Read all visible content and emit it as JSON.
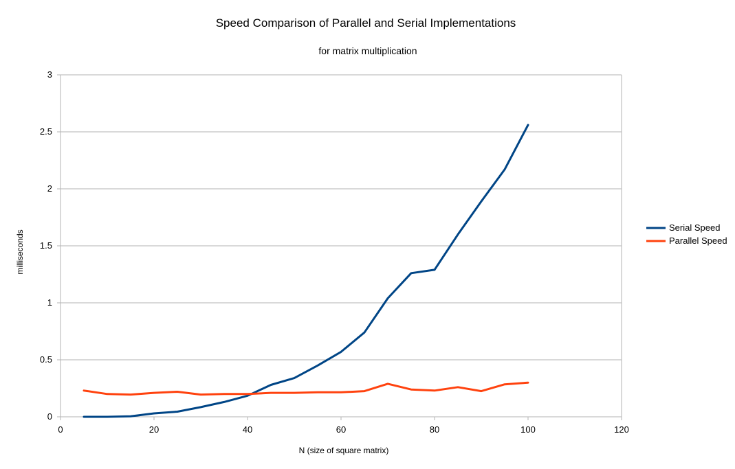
{
  "chart_data": {
    "type": "line",
    "title": "Speed Comparison of Parallel and Serial Implementations",
    "subtitle": "for matrix multiplication",
    "xlabel": "N (size of square matrix)",
    "ylabel": "milliseconds",
    "xlim": [
      0,
      120
    ],
    "ylim": [
      0,
      3
    ],
    "xticks": [
      0,
      20,
      40,
      60,
      80,
      100,
      120
    ],
    "yticks": [
      0,
      0.5,
      1,
      1.5,
      2,
      2.5,
      3
    ],
    "xtick_labels": [
      "0",
      "20",
      "40",
      "60",
      "80",
      "100",
      "120"
    ],
    "ytick_labels": [
      "0",
      "0.5",
      "1",
      "1.5",
      "2",
      "2.5",
      "3"
    ],
    "grid": true,
    "legend_position": "right",
    "x": [
      5,
      10,
      15,
      20,
      25,
      30,
      35,
      40,
      45,
      50,
      55,
      60,
      65,
      70,
      75,
      80,
      85,
      90,
      95,
      100
    ],
    "series": [
      {
        "name": "Serial Speed",
        "color": "#004586",
        "values": [
          0.0,
          0.0,
          0.005,
          0.03,
          0.045,
          0.085,
          0.13,
          0.185,
          0.28,
          0.34,
          0.45,
          0.57,
          0.74,
          1.04,
          1.26,
          1.29,
          1.6,
          1.89,
          2.17,
          2.56
        ]
      },
      {
        "name": "Parallel Speed",
        "color": "#ff420e",
        "values": [
          0.23,
          0.2,
          0.195,
          0.21,
          0.22,
          0.195,
          0.2,
          0.2,
          0.21,
          0.21,
          0.215,
          0.215,
          0.225,
          0.29,
          0.24,
          0.23,
          0.26,
          0.225,
          0.285,
          0.3
        ]
      }
    ]
  }
}
